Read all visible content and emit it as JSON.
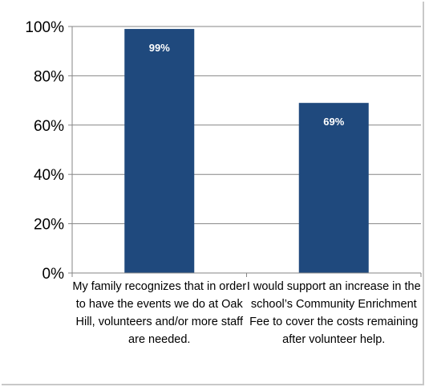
{
  "chart_data": {
    "type": "bar",
    "title": "",
    "xlabel": "",
    "ylabel": "",
    "categories": [
      "My family recognizes that in order to have the events we do at Oak Hill, volunteers and/or more staff are needed.",
      "I would support an increase in the school’s Community Enrichment Fee to cover the costs remaining after volunteer help."
    ],
    "values": [
      99,
      69
    ],
    "data_labels": [
      "99%",
      "69%"
    ],
    "ylim": [
      0,
      100
    ],
    "y_ticks": [
      0,
      20,
      40,
      60,
      80,
      100
    ],
    "y_tick_labels": [
      "0%",
      "20%",
      "40%",
      "60%",
      "80%",
      "100%"
    ],
    "grid": true,
    "legend": "none",
    "bar_color": "#1f497d",
    "grid_color": "#868686"
  }
}
